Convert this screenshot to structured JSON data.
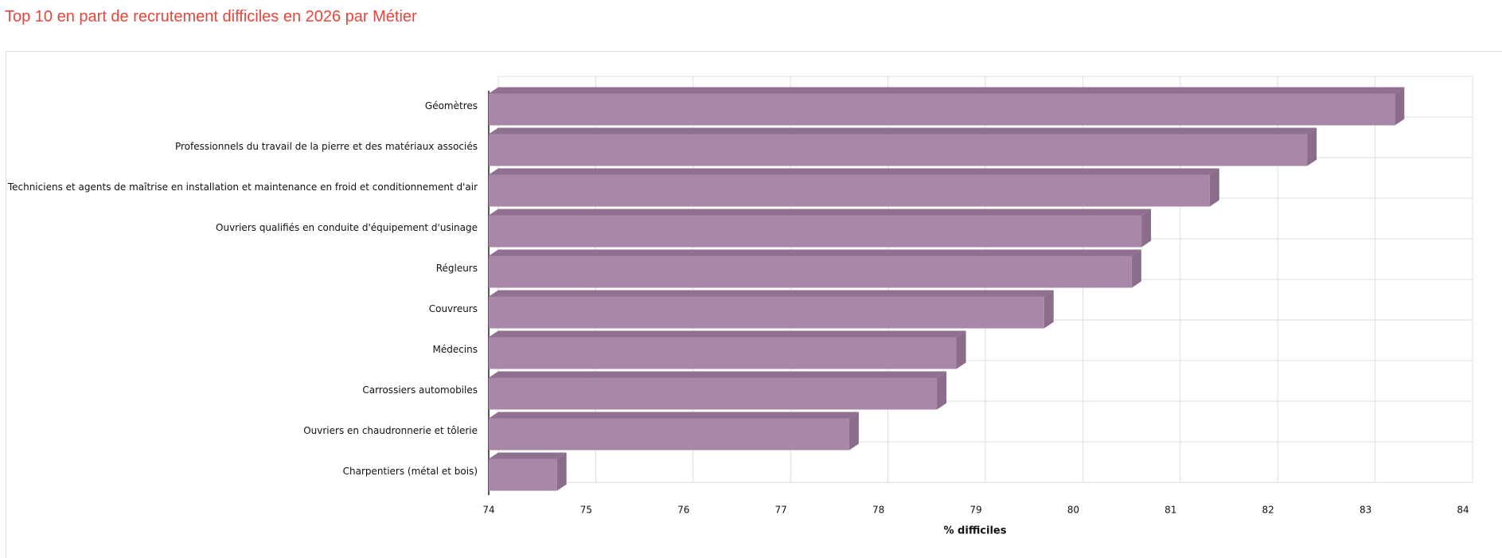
{
  "chart_data": {
    "type": "bar3d_horizontal",
    "title": "Top 10 en part de recrutement difficiles en 2026 par Métier",
    "x_label": "% difficiles",
    "categories": [
      "Géomètres",
      "Professionnels du travail de la pierre et des matériaux associés",
      "Techniciens et agents de maîtrise en installation et maintenance en froid et conditionnement d'air",
      "Ouvriers qualifiés en conduite d'équipement d'usinage",
      "Régleurs",
      "Couvreurs",
      "Médecins",
      "Carrossiers automobiles",
      "Ouvriers en chaudronnerie et tôlerie",
      "Charpentiers (métal et bois)"
    ],
    "values": [
      83.3,
      82.4,
      81.4,
      80.7,
      80.6,
      79.7,
      78.8,
      78.6,
      77.7,
      74.7
    ],
    "color": "#a887a8",
    "xlim": [
      74,
      84
    ],
    "xticks": [
      74,
      75,
      76,
      77,
      78,
      79,
      80,
      81,
      82,
      83,
      84
    ],
    "grid": true
  }
}
